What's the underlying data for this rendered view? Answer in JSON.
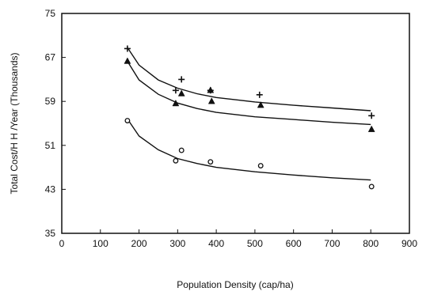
{
  "chart_data": {
    "type": "scatter",
    "title": "",
    "xlabel": "Population Density (cap/ha)",
    "ylabel": "Total Cost/H H /Year (Thousands)",
    "xlim": [
      0,
      900
    ],
    "ylim": [
      35,
      75
    ],
    "xticks": [
      0,
      100,
      200,
      300,
      400,
      500,
      600,
      700,
      800,
      900
    ],
    "yticks": [
      35,
      43,
      51,
      59,
      67,
      75
    ],
    "grid": false,
    "legend": "none",
    "series": [
      {
        "marker": "plus",
        "points": [
          [
            170,
            68.6
          ],
          [
            295,
            61.0
          ],
          [
            310,
            63.0
          ],
          [
            385,
            61.0
          ],
          [
            512,
            60.2
          ],
          [
            802,
            56.4
          ]
        ],
        "curve": [
          [
            170,
            68.8
          ],
          [
            200,
            65.6
          ],
          [
            250,
            62.9
          ],
          [
            300,
            61.4
          ],
          [
            350,
            60.4
          ],
          [
            400,
            59.7
          ],
          [
            500,
            58.9
          ],
          [
            600,
            58.3
          ],
          [
            700,
            57.8
          ],
          [
            800,
            57.3
          ]
        ]
      },
      {
        "marker": "triangle",
        "points": [
          [
            170,
            66.3
          ],
          [
            295,
            58.6
          ],
          [
            310,
            60.4
          ],
          [
            385,
            61.0
          ],
          [
            388,
            59.0
          ],
          [
            515,
            58.3
          ],
          [
            802,
            53.9
          ]
        ],
        "curve": [
          [
            170,
            66.3
          ],
          [
            200,
            62.9
          ],
          [
            250,
            60.3
          ],
          [
            300,
            58.7
          ],
          [
            350,
            57.7
          ],
          [
            400,
            57.0
          ],
          [
            500,
            56.2
          ],
          [
            600,
            55.7
          ],
          [
            700,
            55.2
          ],
          [
            800,
            54.8
          ]
        ]
      },
      {
        "marker": "circle",
        "points": [
          [
            170,
            55.5
          ],
          [
            295,
            48.2
          ],
          [
            310,
            50.1
          ],
          [
            385,
            48.0
          ],
          [
            515,
            47.3
          ],
          [
            802,
            43.5
          ]
        ],
        "curve": [
          [
            170,
            55.8
          ],
          [
            200,
            52.7
          ],
          [
            250,
            50.2
          ],
          [
            300,
            48.6
          ],
          [
            350,
            47.7
          ],
          [
            400,
            47.0
          ],
          [
            500,
            46.2
          ],
          [
            600,
            45.6
          ],
          [
            700,
            45.1
          ],
          [
            800,
            44.7
          ]
        ]
      }
    ]
  }
}
